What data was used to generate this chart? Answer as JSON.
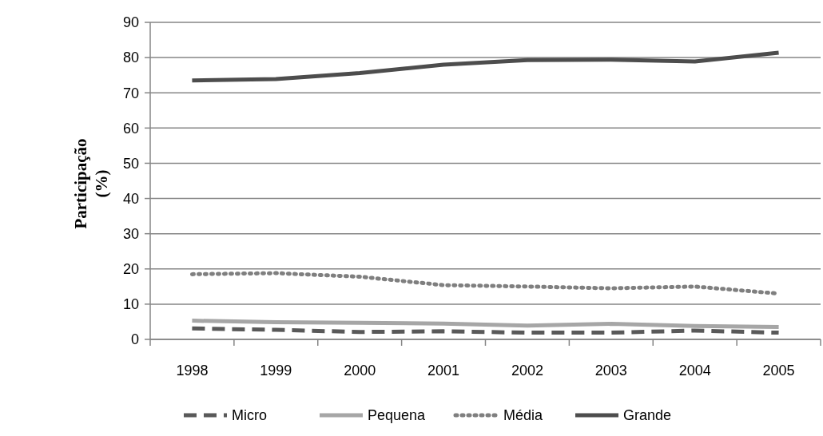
{
  "chart_data": {
    "type": "line",
    "ylabel": "Participação (%)",
    "categories": [
      "1998",
      "1999",
      "2000",
      "2001",
      "2002",
      "2003",
      "2004",
      "2005"
    ],
    "series": [
      {
        "name": "Micro",
        "color": "#595959",
        "line_style": "dashed",
        "values": [
          3.1,
          2.7,
          2.1,
          2.3,
          1.9,
          1.9,
          2.5,
          1.9
        ]
      },
      {
        "name": "Pequena",
        "color": "#a6a6a6",
        "line_style": "solid",
        "values": [
          5.3,
          4.9,
          4.7,
          4.5,
          3.9,
          4.4,
          3.8,
          3.5
        ]
      },
      {
        "name": "Média",
        "color": "#7f7f7f",
        "line_style": "dotted",
        "values": [
          18.5,
          18.8,
          17.8,
          15.4,
          15.0,
          14.5,
          15.0,
          13.0
        ]
      },
      {
        "name": "Grande",
        "color": "#4d4d4d",
        "line_style": "solid",
        "values": [
          73.5,
          73.9,
          75.6,
          78.0,
          79.3,
          79.4,
          78.9,
          81.4
        ]
      }
    ],
    "ylim": [
      0,
      90
    ],
    "yticks": [
      0,
      10,
      20,
      30,
      40,
      50,
      60,
      70,
      80,
      90
    ],
    "grid": "y",
    "legend": "bottom",
    "marker": "none"
  }
}
